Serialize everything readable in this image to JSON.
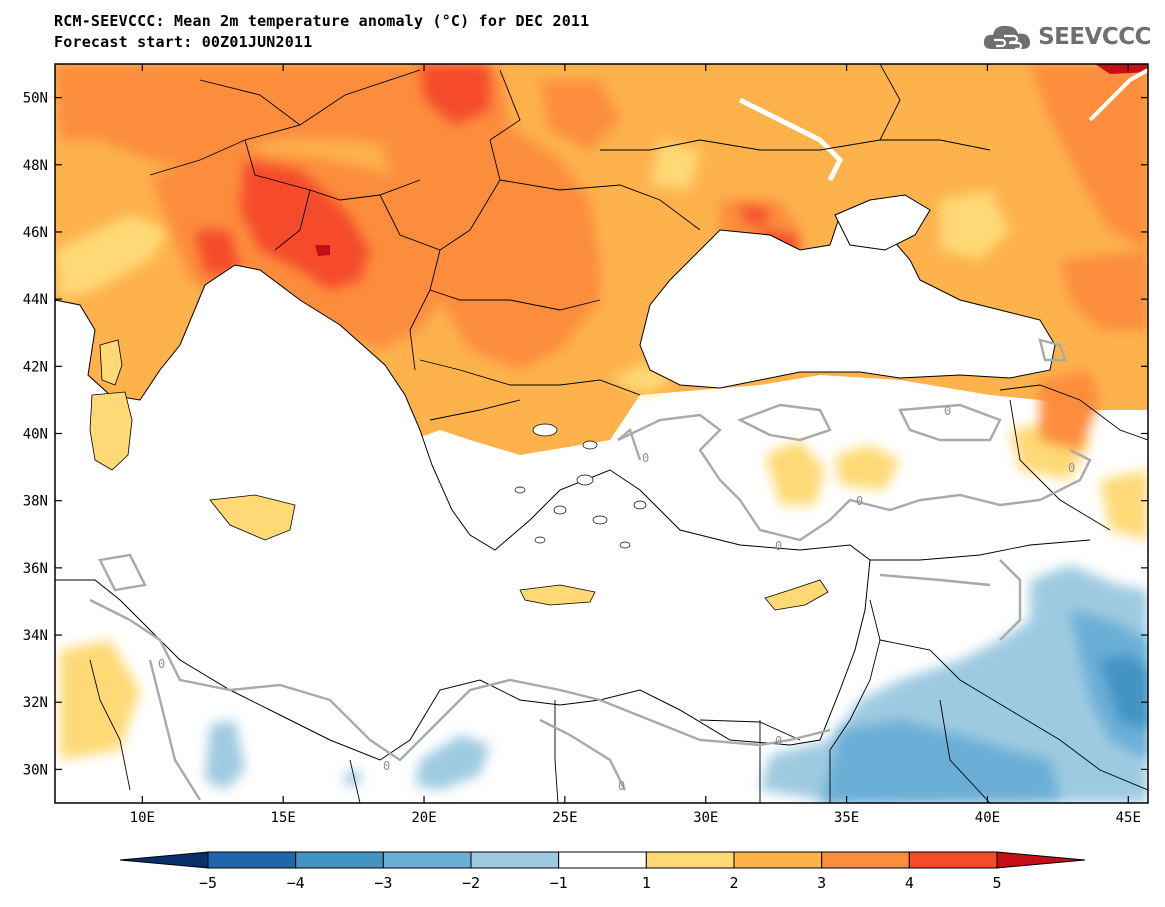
{
  "title": {
    "line1": "RCM-SEEVCCC: Mean 2m temperature anomaly (°C) for DEC 2011",
    "line2": "Forecast start: 00Z01JUN2011"
  },
  "logo": {
    "text": "SEEVCCC",
    "icon": "cloud-icon",
    "color": "#6f6f6f"
  },
  "map": {
    "projection": "equirectangular",
    "lon_range": [
      6.9,
      45.7
    ],
    "lat_range": [
      29.0,
      51.0
    ],
    "lon_ticks": [
      {
        "value": 10,
        "label": "10E"
      },
      {
        "value": 15,
        "label": "15E"
      },
      {
        "value": 20,
        "label": "20E"
      },
      {
        "value": 25,
        "label": "25E"
      },
      {
        "value": 30,
        "label": "30E"
      },
      {
        "value": 35,
        "label": "35E"
      },
      {
        "value": 40,
        "label": "40E"
      },
      {
        "value": 45,
        "label": "45E"
      }
    ],
    "lat_ticks": [
      {
        "value": 30,
        "label": "30N"
      },
      {
        "value": 32,
        "label": "32N"
      },
      {
        "value": 34,
        "label": "34N"
      },
      {
        "value": 36,
        "label": "36N"
      },
      {
        "value": 38,
        "label": "38N"
      },
      {
        "value": 40,
        "label": "40N"
      },
      {
        "value": 42,
        "label": "42N"
      },
      {
        "value": 44,
        "label": "44N"
      },
      {
        "value": 46,
        "label": "46N"
      },
      {
        "value": 48,
        "label": "48N"
      },
      {
        "value": 50,
        "label": "50N"
      }
    ],
    "contour_label": "0"
  },
  "colorbar": {
    "bins": [
      {
        "lo": -6,
        "hi": -5,
        "color": "#08306b"
      },
      {
        "lo": -5,
        "hi": -4,
        "color": "#2166ac"
      },
      {
        "lo": -4,
        "hi": -3,
        "color": "#4393c3"
      },
      {
        "lo": -3,
        "hi": -2,
        "color": "#6baed6"
      },
      {
        "lo": -2,
        "hi": -1,
        "color": "#9ecae1"
      },
      {
        "lo": -1,
        "hi": 1,
        "color": "#ffffff"
      },
      {
        "lo": 1,
        "hi": 2,
        "color": "#fed976"
      },
      {
        "lo": 2,
        "hi": 3,
        "color": "#fdb24c"
      },
      {
        "lo": 3,
        "hi": 4,
        "color": "#fc8d3c"
      },
      {
        "lo": 4,
        "hi": 5,
        "color": "#f54b2a"
      },
      {
        "lo": 5,
        "hi": 6,
        "color": "#c50f16"
      }
    ],
    "labels": [
      "−5",
      "−4",
      "−3",
      "−2",
      "−1",
      "1",
      "2",
      "3",
      "4",
      "5"
    ]
  }
}
